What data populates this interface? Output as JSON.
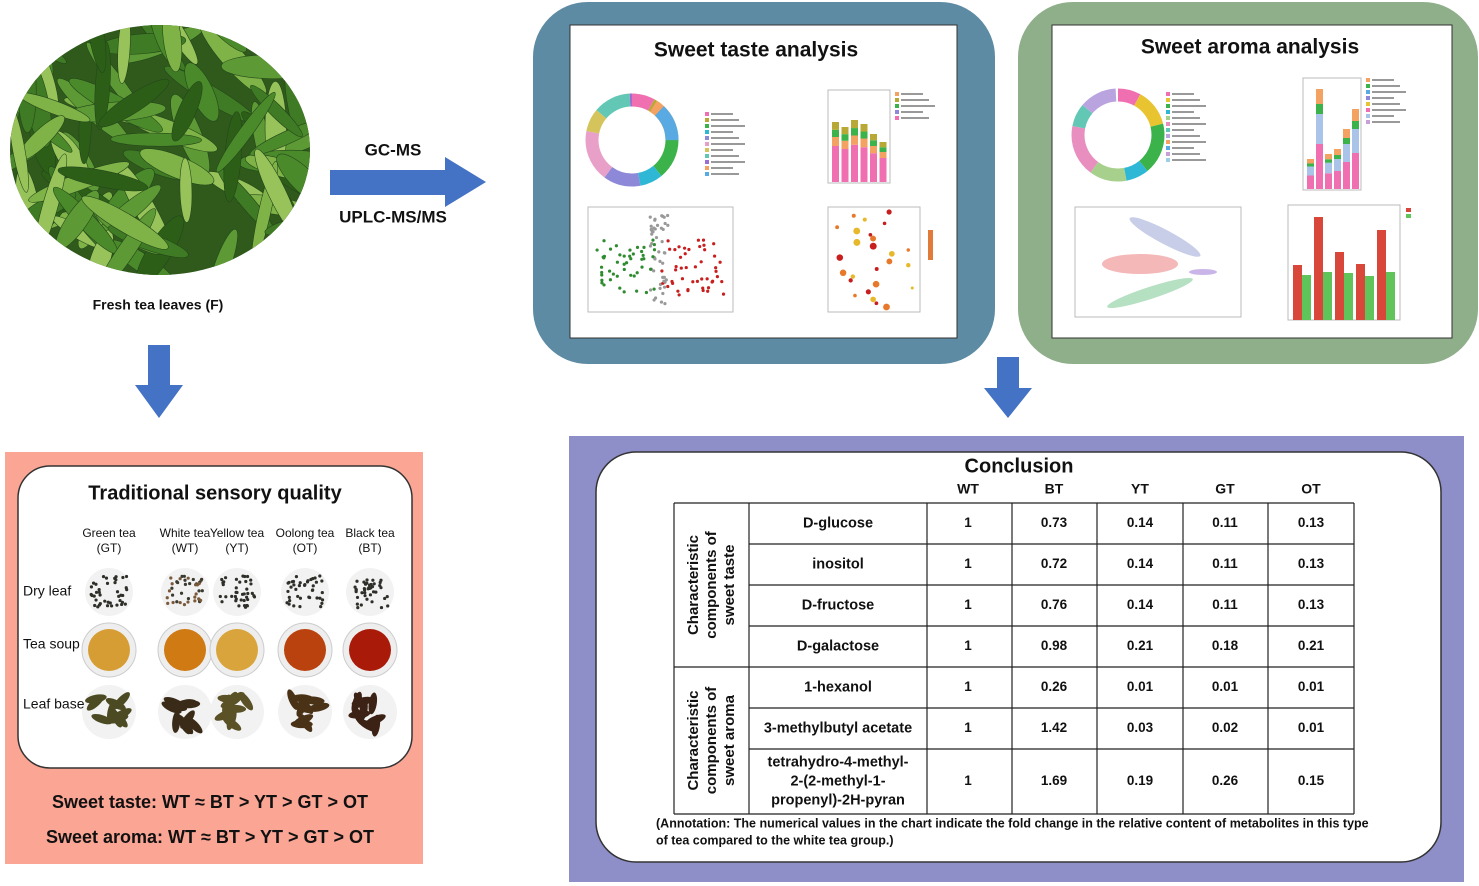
{
  "source": {
    "caption": "Fresh tea leaves  (F)"
  },
  "methods": [
    "GC-MS",
    "UPLC-MS/MS"
  ],
  "taste_analysis": {
    "title": "Sweet taste analysis"
  },
  "aroma_analysis": {
    "title": "Sweet aroma analysis"
  },
  "sensory": {
    "title": "Traditional sensory quality",
    "teas": [
      {
        "name": "Green tea",
        "abbr": "(GT)"
      },
      {
        "name": "White tea",
        "abbr": "(WT)"
      },
      {
        "name": "Yellow tea",
        "abbr": "(YT)"
      },
      {
        "name": "Oolong tea",
        "abbr": "(OT)"
      },
      {
        "name": "Black tea",
        "abbr": "(BT)"
      }
    ],
    "rows": [
      "Dry leaf",
      "Tea soup",
      "Leaf base"
    ],
    "summary": [
      "Sweet taste: WT ≈ BT > YT > GT > OT",
      "Sweet aroma: WT ≈ BT > YT > GT > OT"
    ]
  },
  "conclusion": {
    "title": "Conclusion",
    "columns": [
      "WT",
      "BT",
      "YT",
      "GT",
      "OT"
    ],
    "groups": [
      {
        "label": [
          "Characteristic",
          "components of",
          "sweet taste"
        ],
        "rows": [
          {
            "name": [
              "D-glucose"
            ],
            "values": [
              1,
              0.73,
              0.14,
              0.11,
              0.13
            ]
          },
          {
            "name": [
              "inositol"
            ],
            "values": [
              1,
              0.72,
              0.14,
              0.11,
              0.13
            ]
          },
          {
            "name": [
              "D-fructose"
            ],
            "values": [
              1,
              0.76,
              0.14,
              0.11,
              0.13
            ]
          },
          {
            "name": [
              "D-galactose"
            ],
            "values": [
              1,
              0.98,
              0.21,
              0.18,
              0.21
            ]
          }
        ]
      },
      {
        "label": [
          "Characteristic",
          "components of",
          "sweet aroma"
        ],
        "rows": [
          {
            "name": [
              "1-hexanol"
            ],
            "values": [
              1,
              0.26,
              0.01,
              0.01,
              0.01
            ]
          },
          {
            "name": [
              "3-methylbutyl acetate"
            ],
            "values": [
              1,
              1.42,
              0.03,
              0.02,
              0.01
            ]
          },
          {
            "name": [
              "tetrahydro-4-methyl-",
              "2-(2-methyl-1-",
              "propenyl)-2H-pyran"
            ],
            "values": [
              1,
              1.69,
              0.19,
              0.26,
              0.15
            ]
          }
        ]
      }
    ],
    "annotation": [
      "(Annotation: The numerical values in the chart indicate the fold change in the relative content of metabolites in this type",
      "of tea compared to the white tea group.)"
    ]
  }
}
